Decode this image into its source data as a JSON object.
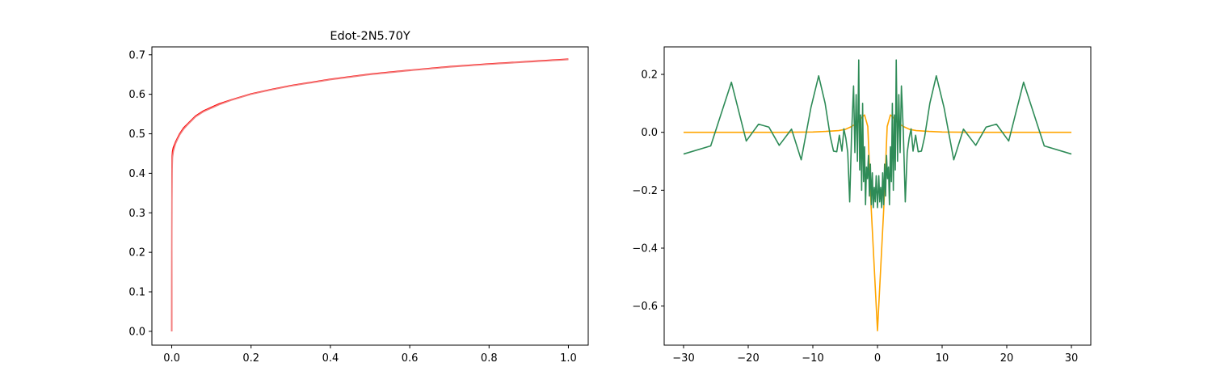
{
  "chart_data": [
    {
      "type": "line",
      "title": "Edot-2N5.70Y",
      "xlabel": "",
      "ylabel": "",
      "xlim": [
        -0.05,
        1.05
      ],
      "ylim": [
        -0.035,
        0.72
      ],
      "xticks": [
        0.0,
        0.2,
        0.4,
        0.6,
        0.8,
        1.0
      ],
      "xtick_labels": [
        "0.0",
        "0.2",
        "0.4",
        "0.6",
        "0.8",
        "1.0"
      ],
      "yticks": [
        0.0,
        0.1,
        0.2,
        0.3,
        0.4,
        0.5,
        0.6,
        0.7
      ],
      "ytick_labels": [
        "0.0",
        "0.1",
        "0.2",
        "0.3",
        "0.4",
        "0.5",
        "0.6",
        "0.7"
      ],
      "grid": false,
      "series": [
        {
          "color": "#ff0000",
          "x": [
            0,
            0.0005,
            0.001,
            0.002,
            0.004,
            0.006,
            0.008,
            0.01,
            0.015,
            0.02,
            0.03,
            0.04,
            0.05,
            0.06,
            0.08,
            0.1,
            0.12,
            0.15,
            0.2,
            0.25,
            0.3,
            0.4,
            0.5,
            0.6,
            0.7,
            0.8,
            0.9,
            1.0
          ],
          "y": [
            0,
            0.4,
            0.44,
            0.455,
            0.465,
            0.47,
            0.475,
            0.48,
            0.49,
            0.5,
            0.515,
            0.525,
            0.535,
            0.545,
            0.558,
            0.567,
            0.576,
            0.586,
            0.601,
            0.612,
            0.622,
            0.638,
            0.651,
            0.661,
            0.67,
            0.677,
            0.683,
            0.689
          ]
        },
        {
          "color": "#f08080",
          "x": [
            0,
            0.0005,
            0.001,
            0.002,
            0.004,
            0.006,
            0.008,
            0.01,
            0.015,
            0.02,
            0.03,
            0.04,
            0.05,
            0.06,
            0.08,
            0.1,
            0.12,
            0.15,
            0.2,
            0.25,
            0.3,
            0.4,
            0.5,
            0.6,
            0.7,
            0.8,
            0.9,
            1.0
          ],
          "y": [
            0,
            0.33,
            0.41,
            0.44,
            0.455,
            0.463,
            0.47,
            0.476,
            0.487,
            0.497,
            0.512,
            0.523,
            0.533,
            0.543,
            0.556,
            0.565,
            0.574,
            0.585,
            0.6,
            0.611,
            0.621,
            0.637,
            0.65,
            0.66,
            0.669,
            0.676,
            0.682,
            0.688
          ]
        }
      ]
    },
    {
      "type": "line",
      "title": "",
      "xlabel": "",
      "ylabel": "",
      "xlim": [
        -33,
        33
      ],
      "ylim": [
        -0.735,
        0.295
      ],
      "xticks": [
        -30,
        -20,
        -10,
        0,
        10,
        20,
        30
      ],
      "xtick_labels": [
        "−30",
        "−20",
        "−10",
        "0",
        "10",
        "20",
        "30"
      ],
      "yticks": [
        -0.6,
        -0.4,
        -0.2,
        0.0,
        0.2
      ],
      "ytick_labels": [
        "−0.6",
        "−0.4",
        "−0.2",
        "0.0",
        "0.2"
      ],
      "grid": false,
      "series": [
        {
          "color": "#ffa500",
          "x": [
            -30,
            -25,
            -20,
            -15,
            -10,
            -8,
            -6,
            -5,
            -4,
            -3,
            -2.5,
            -2,
            -1.5,
            -1,
            0,
            1,
            1.5,
            2,
            2.5,
            3,
            4,
            5,
            6,
            8,
            10,
            15,
            20,
            25,
            30
          ],
          "y": [
            0,
            0,
            0,
            0,
            0.001,
            0.003,
            0.006,
            0.01,
            0.02,
            0.035,
            0.05,
            0.06,
            0.02,
            -0.25,
            -0.685,
            -0.25,
            0.02,
            0.06,
            0.05,
            0.035,
            0.02,
            0.01,
            0.006,
            0.003,
            0.001,
            0,
            0,
            0,
            0
          ]
        },
        {
          "color": "#2e8b57",
          "x": [
            -30,
            -25.8,
            -22.6,
            -20.3,
            -18.4,
            -16.8,
            -15.2,
            -13.3,
            -11.8,
            -10.3,
            -9.1,
            -8.1,
            -7.3,
            -6.8,
            -6.3,
            -5.9,
            -5.5,
            -5.2,
            -4.9,
            -4.6,
            -4.3,
            -4.0,
            -3.7,
            -3.5,
            -3.3,
            -3.1,
            -2.9,
            -2.75,
            -2.6,
            -2.45,
            -2.3,
            -2.15,
            -2.0,
            -1.85,
            -1.7,
            -1.55,
            -1.4,
            -1.25,
            -1.1,
            -0.95,
            -0.8,
            -0.65,
            -0.5,
            -0.35,
            -0.2,
            0.0,
            0.2,
            0.35,
            0.5,
            0.65,
            0.8,
            0.95,
            1.1,
            1.25,
            1.4,
            1.55,
            1.7,
            1.85,
            2.0,
            2.15,
            2.3,
            2.45,
            2.6,
            2.75,
            2.9,
            3.1,
            3.3,
            3.5,
            3.7,
            4.0,
            4.3,
            4.6,
            4.9,
            5.2,
            5.5,
            5.9,
            6.3,
            6.8,
            7.3,
            8.1,
            9.1,
            10.3,
            11.8,
            13.3,
            15.2,
            16.8,
            18.4,
            20.3,
            22.6,
            25.8,
            30
          ],
          "y": [
            -0.075,
            -0.047,
            0.173,
            -0.03,
            0.028,
            0.018,
            -0.045,
            0.011,
            -0.095,
            0.085,
            0.195,
            0.1,
            -0.015,
            -0.065,
            -0.067,
            -0.01,
            -0.065,
            0.012,
            -0.02,
            -0.07,
            -0.24,
            0.0,
            0.16,
            -0.07,
            0.13,
            -0.1,
            0.25,
            -0.13,
            0.06,
            -0.2,
            0.1,
            -0.17,
            -0.05,
            -0.25,
            -0.12,
            -0.16,
            -0.08,
            -0.22,
            -0.11,
            -0.25,
            -0.14,
            -0.26,
            -0.19,
            -0.24,
            -0.15,
            -0.26,
            -0.15,
            -0.24,
            -0.19,
            -0.26,
            -0.14,
            -0.25,
            -0.11,
            -0.22,
            -0.08,
            -0.16,
            -0.12,
            -0.25,
            -0.05,
            -0.17,
            0.1,
            -0.2,
            0.06,
            -0.13,
            0.25,
            -0.1,
            0.13,
            -0.07,
            0.16,
            0.0,
            -0.24,
            -0.07,
            -0.02,
            0.012,
            -0.065,
            -0.01,
            -0.067,
            -0.065,
            -0.015,
            0.1,
            0.195,
            0.085,
            -0.095,
            0.011,
            -0.045,
            0.018,
            0.028,
            -0.03,
            0.173,
            -0.047,
            -0.075
          ]
        }
      ]
    }
  ]
}
